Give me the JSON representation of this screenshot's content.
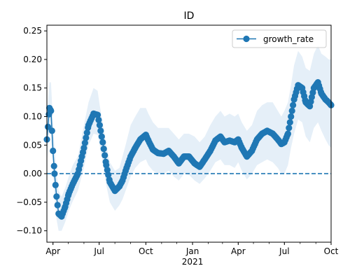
{
  "chart_data": {
    "type": "line",
    "title": "ID",
    "xlabel": "",
    "ylabel": "",
    "ylim": [
      -0.12,
      0.26
    ],
    "xlim": [
      "2020-03-20",
      "2021-10-01"
    ],
    "grid": false,
    "legend_position": "top-right",
    "yticks": [
      -0.1,
      -0.05,
      0.0,
      0.05,
      0.1,
      0.15,
      0.2,
      0.25
    ],
    "ytick_labels": [
      "−0.10",
      "−0.05",
      "0.00",
      "0.05",
      "0.10",
      "0.15",
      "0.20",
      "0.25"
    ],
    "xticks": [
      {
        "date": "2020-04-01",
        "label": "Apr"
      },
      {
        "date": "2020-07-01",
        "label": "Jul"
      },
      {
        "date": "2020-10-01",
        "label": "Oct"
      },
      {
        "date": "2021-01-01",
        "label": "Jan",
        "sublabel": "2021"
      },
      {
        "date": "2021-04-01",
        "label": "Apr"
      },
      {
        "date": "2021-07-01",
        "label": "Jul"
      },
      {
        "date": "2021-10-01",
        "label": "Oct"
      }
    ],
    "reference_line": {
      "y": 0.0,
      "style": "dashed",
      "color": "#1f77b4"
    },
    "series": [
      {
        "name": "growth_rate",
        "color": "#1f77b4",
        "marker": "circle",
        "band_color": "#c6dbef",
        "x": [
          "2020-03-20",
          "2020-03-25",
          "2020-03-28",
          "2020-04-01",
          "2020-04-04",
          "2020-04-08",
          "2020-04-12",
          "2020-04-18",
          "2020-04-25",
          "2020-05-02",
          "2020-05-10",
          "2020-05-20",
          "2020-06-01",
          "2020-06-10",
          "2020-06-20",
          "2020-06-28",
          "2020-07-02",
          "2020-07-08",
          "2020-07-15",
          "2020-07-22",
          "2020-08-01",
          "2020-08-10",
          "2020-08-16",
          "2020-08-22",
          "2020-09-01",
          "2020-09-10",
          "2020-09-20",
          "2020-10-01",
          "2020-10-06",
          "2020-10-15",
          "2020-10-25",
          "2020-11-05",
          "2020-11-15",
          "2020-11-25",
          "2020-12-05",
          "2020-12-15",
          "2020-12-25",
          "2021-01-05",
          "2021-01-15",
          "2021-01-25",
          "2021-02-05",
          "2021-02-15",
          "2021-02-25",
          "2021-03-05",
          "2021-03-15",
          "2021-03-25",
          "2021-04-01",
          "2021-04-08",
          "2021-04-18",
          "2021-04-28",
          "2021-05-08",
          "2021-05-18",
          "2021-05-28",
          "2021-06-08",
          "2021-06-18",
          "2021-06-25",
          "2021-07-01",
          "2021-07-08",
          "2021-07-14",
          "2021-07-20",
          "2021-07-28",
          "2021-08-05",
          "2021-08-12",
          "2021-08-20",
          "2021-08-28",
          "2021-09-05",
          "2021-09-12",
          "2021-09-20",
          "2021-09-26",
          "2021-10-01"
        ],
        "y": [
          0.06,
          0.115,
          0.11,
          0.04,
          0.0,
          -0.04,
          -0.07,
          -0.075,
          -0.058,
          -0.035,
          -0.018,
          0.0,
          0.045,
          0.085,
          0.105,
          0.103,
          0.085,
          0.055,
          0.015,
          -0.015,
          -0.03,
          -0.022,
          -0.012,
          0.005,
          0.03,
          0.045,
          0.06,
          0.068,
          0.058,
          0.042,
          0.036,
          0.035,
          0.04,
          0.03,
          0.018,
          0.03,
          0.03,
          0.018,
          0.012,
          0.025,
          0.04,
          0.058,
          0.065,
          0.055,
          0.058,
          0.055,
          0.06,
          0.045,
          0.03,
          0.04,
          0.06,
          0.07,
          0.075,
          0.07,
          0.06,
          0.052,
          0.055,
          0.07,
          0.1,
          0.13,
          0.155,
          0.15,
          0.125,
          0.118,
          0.15,
          0.16,
          0.14,
          0.13,
          0.125,
          0.12
        ],
        "band_lower": [
          0.02,
          0.075,
          0.07,
          0.0,
          -0.04,
          -0.08,
          -0.1,
          -0.1,
          -0.085,
          -0.065,
          -0.048,
          -0.03,
          0.01,
          0.05,
          0.07,
          0.068,
          0.05,
          0.02,
          -0.02,
          -0.05,
          -0.065,
          -0.055,
          -0.045,
          -0.03,
          -0.005,
          0.01,
          0.02,
          0.025,
          0.015,
          0.005,
          0.0,
          0.0,
          0.005,
          -0.005,
          -0.012,
          0.0,
          -0.002,
          -0.012,
          -0.018,
          -0.008,
          0.005,
          0.02,
          0.025,
          0.015,
          0.015,
          0.01,
          0.02,
          0.005,
          -0.01,
          0.0,
          0.015,
          0.02,
          0.025,
          0.02,
          0.01,
          0.0,
          0.0,
          0.015,
          0.045,
          0.07,
          0.095,
          0.09,
          0.065,
          0.055,
          0.08,
          0.09,
          0.075,
          0.06,
          0.05,
          0.045
        ],
        "band_upper": [
          0.1,
          0.16,
          0.16,
          0.09,
          0.045,
          0.0,
          -0.03,
          -0.04,
          -0.025,
          -0.005,
          0.015,
          0.03,
          0.085,
          0.125,
          0.15,
          0.145,
          0.12,
          0.09,
          0.05,
          0.02,
          0.005,
          0.01,
          0.03,
          0.05,
          0.085,
          0.1,
          0.115,
          0.115,
          0.105,
          0.09,
          0.08,
          0.08,
          0.08,
          0.07,
          0.06,
          0.07,
          0.07,
          0.065,
          0.055,
          0.065,
          0.085,
          0.1,
          0.11,
          0.1,
          0.105,
          0.1,
          0.105,
          0.09,
          0.075,
          0.085,
          0.11,
          0.12,
          0.125,
          0.125,
          0.11,
          0.1,
          0.11,
          0.125,
          0.155,
          0.19,
          0.215,
          0.205,
          0.185,
          0.18,
          0.21,
          0.225,
          0.21,
          0.205,
          0.2,
          0.2
        ]
      }
    ]
  }
}
